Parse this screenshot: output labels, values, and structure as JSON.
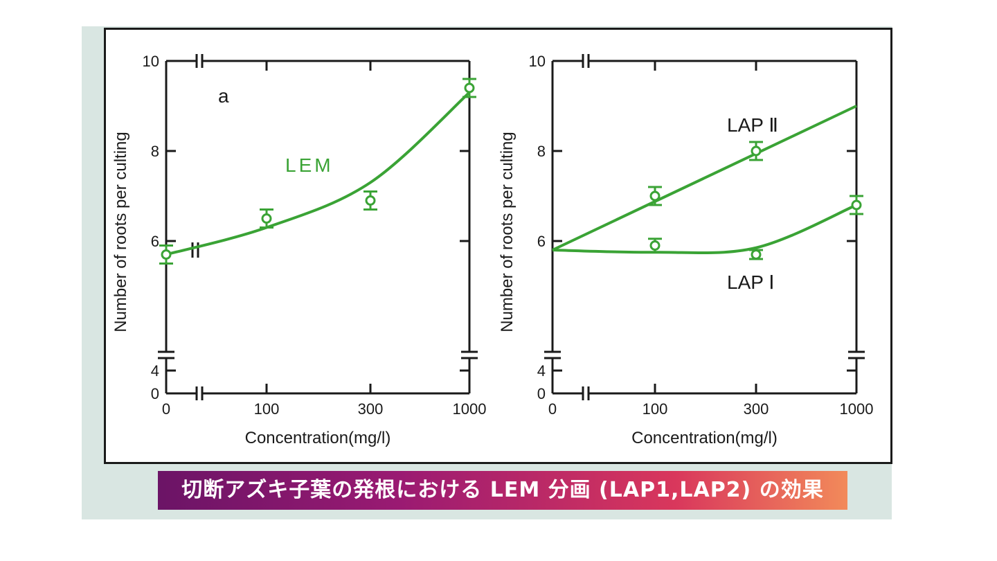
{
  "caption": "切断アズキ子葉の発根における LEM 分画 (LAP1,LAP2) の効果",
  "colors": {
    "series": "#3aa335",
    "axis": "#1a1a1a",
    "frame": "#1a1a1a",
    "background": "#d9e6e2"
  },
  "chart_data": [
    {
      "type": "line",
      "panel_label": "a",
      "xlabel": "Concentration(mg/l)",
      "ylabel": "Number of roots per culting",
      "x_ticks": [
        "0",
        "100",
        "300",
        "1000"
      ],
      "y_ticks": [
        "0",
        "4",
        "6",
        "8",
        "10"
      ],
      "ylim": [
        0,
        10
      ],
      "axis_breaks": {
        "x": "between 0 and 100",
        "y": "between 0 and 4"
      },
      "series": [
        {
          "name": "LEM",
          "points": [
            {
              "x": "0",
              "y": 5.7,
              "err": 0.2
            },
            {
              "x": "100",
              "y": 6.5,
              "err": 0.2
            },
            {
              "x": "300",
              "y": 6.9,
              "err": 0.2
            },
            {
              "x": "1000",
              "y": 9.4,
              "err": 0.2
            }
          ],
          "fit": [
            {
              "x": "0",
              "y": 5.7
            },
            {
              "x": "100",
              "y": 6.3
            },
            {
              "x": "300",
              "y": 7.3
            },
            {
              "x": "1000",
              "y": 9.3
            }
          ]
        }
      ]
    },
    {
      "type": "line",
      "panel_label": "",
      "xlabel": "Concentration(mg/l)",
      "ylabel": "Number of roots per culting",
      "x_ticks": [
        "0",
        "100",
        "300",
        "1000"
      ],
      "y_ticks": [
        "0",
        "4",
        "6",
        "8",
        "10"
      ],
      "ylim": [
        0,
        10
      ],
      "axis_breaks": {
        "x": "between 0 and 100",
        "y": "between 0 and 4"
      },
      "series": [
        {
          "name": "LAP Ⅱ",
          "points": [
            {
              "x": "100",
              "y": 7.0,
              "err": 0.2
            },
            {
              "x": "300",
              "y": 8.0,
              "err": 0.2
            }
          ],
          "fit": [
            {
              "x": "0",
              "y": 5.8
            },
            {
              "x": "1000",
              "y": 9.0
            }
          ]
        },
        {
          "name": "LAP Ⅰ",
          "points": [
            {
              "x": "100",
              "y": 5.9,
              "err": 0.15
            },
            {
              "x": "300",
              "y": 5.7,
              "err": 0.1
            },
            {
              "x": "1000",
              "y": 6.8,
              "err": 0.2
            }
          ],
          "fit": [
            {
              "x": "0",
              "y": 5.8
            },
            {
              "x": "100",
              "y": 5.75
            },
            {
              "x": "300",
              "y": 5.85
            },
            {
              "x": "1000",
              "y": 6.8
            }
          ]
        }
      ]
    }
  ]
}
